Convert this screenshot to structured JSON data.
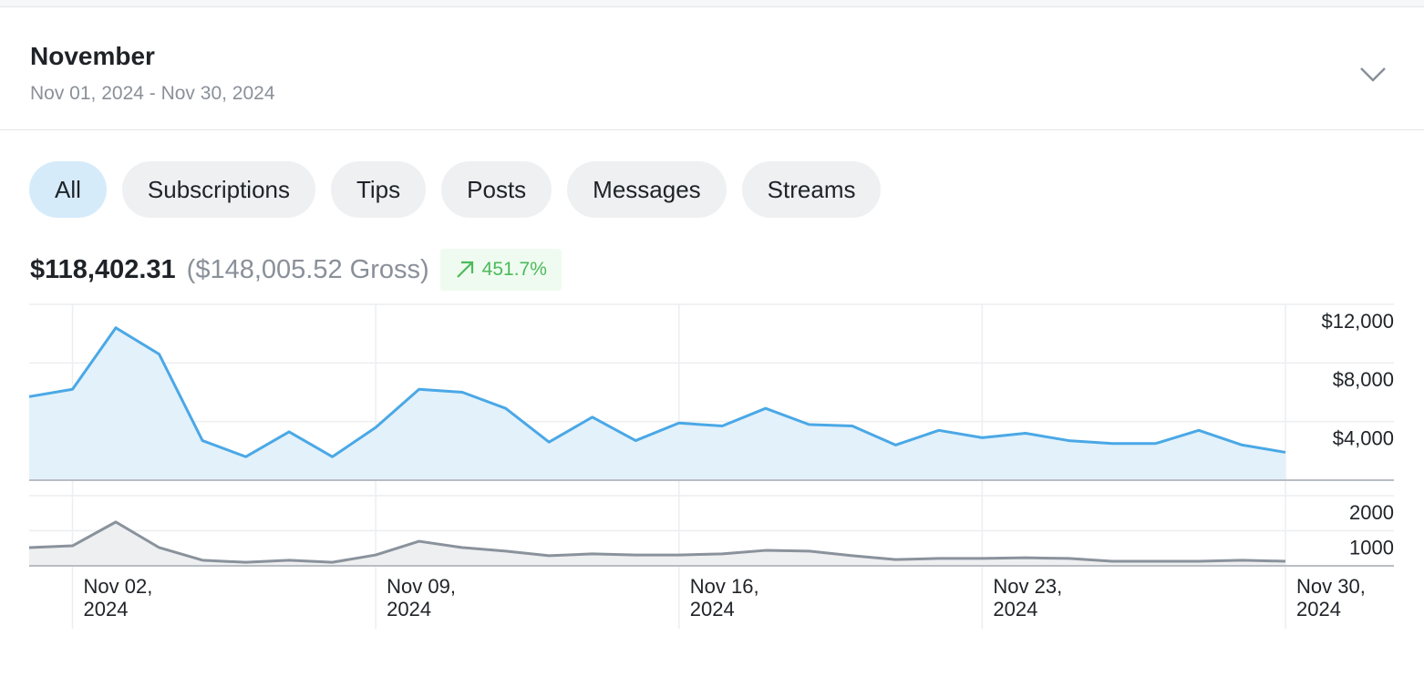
{
  "header": {
    "title": "November",
    "date_range": "Nov 01, 2024 - Nov 30, 2024"
  },
  "filters": [
    "All",
    "Subscriptions",
    "Tips",
    "Posts",
    "Messages",
    "Streams"
  ],
  "active_filter": 0,
  "summary": {
    "net": "$118,402.31",
    "gross": "($148,005.52 Gross)",
    "change": "451.7%"
  },
  "chart_data": [
    {
      "type": "area",
      "color": "#4aa8e6",
      "fill": "#e3f1fb",
      "x": [
        "2024-11-01",
        "2024-11-02",
        "2024-11-03",
        "2024-11-04",
        "2024-11-05",
        "2024-11-06",
        "2024-11-07",
        "2024-11-08",
        "2024-11-09",
        "2024-11-10",
        "2024-11-11",
        "2024-11-12",
        "2024-11-13",
        "2024-11-14",
        "2024-11-15",
        "2024-11-16",
        "2024-11-17",
        "2024-11-18",
        "2024-11-19",
        "2024-11-20",
        "2024-11-21",
        "2024-11-22",
        "2024-11-23",
        "2024-11-24",
        "2024-11-25",
        "2024-11-26",
        "2024-11-27",
        "2024-11-28",
        "2024-11-29",
        "2024-11-30"
      ],
      "values": [
        5700,
        6200,
        10400,
        8600,
        2700,
        1600,
        3300,
        1600,
        3600,
        6200,
        6000,
        4900,
        2600,
        4300,
        2700,
        3900,
        3700,
        4900,
        3800,
        3700,
        2400,
        3400,
        2900,
        3200,
        2700,
        2500,
        2500,
        3400,
        2400,
        1900
      ],
      "ylim": [
        0,
        12000
      ],
      "yticks": [
        {
          "value": 4000,
          "label": "$4,000"
        },
        {
          "value": 8000,
          "label": "$8,000"
        },
        {
          "value": 12000,
          "label": "$12,000"
        }
      ],
      "grid": true
    },
    {
      "type": "area",
      "color": "#8a929c",
      "fill": "#eeeff1",
      "x": [
        "2024-11-01",
        "2024-11-02",
        "2024-11-03",
        "2024-11-04",
        "2024-11-05",
        "2024-11-06",
        "2024-11-07",
        "2024-11-08",
        "2024-11-09",
        "2024-11-10",
        "2024-11-11",
        "2024-11-12",
        "2024-11-13",
        "2024-11-14",
        "2024-11-15",
        "2024-11-16",
        "2024-11-17",
        "2024-11-18",
        "2024-11-19",
        "2024-11-20",
        "2024-11-21",
        "2024-11-22",
        "2024-11-23",
        "2024-11-24",
        "2024-11-25",
        "2024-11-26",
        "2024-11-27",
        "2024-11-28",
        "2024-11-29",
        "2024-11-30"
      ],
      "values": [
        520,
        570,
        1250,
        520,
        160,
        100,
        160,
        100,
        310,
        700,
        520,
        420,
        290,
        340,
        310,
        310,
        340,
        440,
        420,
        290,
        180,
        210,
        210,
        230,
        210,
        130,
        130,
        130,
        160,
        130
      ],
      "ylim": [
        0,
        2000
      ],
      "yticks": [
        1000,
        2000
      ],
      "xticks": [
        {
          "value": "2024-11-02",
          "label": "Nov 02, 2024"
        },
        {
          "value": "2024-11-09",
          "label": "Nov 09, 2024"
        },
        {
          "value": "2024-11-16",
          "label": "Nov 16, 2024"
        },
        {
          "value": "2024-11-23",
          "label": "Nov 23, 2024"
        },
        {
          "value": "2024-11-30",
          "label": "Nov 30, 2024"
        }
      ],
      "grid": true
    }
  ]
}
